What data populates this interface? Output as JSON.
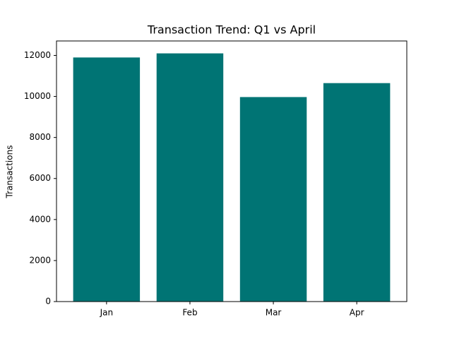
{
  "chart_data": {
    "type": "bar",
    "title": "Transaction Trend: Q1 vs April",
    "y_label": "Transactions",
    "categories": [
      "Jan",
      "Feb",
      "Mar",
      "Apr"
    ],
    "values": [
      11900,
      12100,
      9970,
      10650
    ],
    "color": "#007474",
    "ylim": [
      0,
      12705
    ],
    "yticks": [
      0,
      2000,
      4000,
      6000,
      8000,
      10000,
      12000
    ],
    "grid": false
  }
}
